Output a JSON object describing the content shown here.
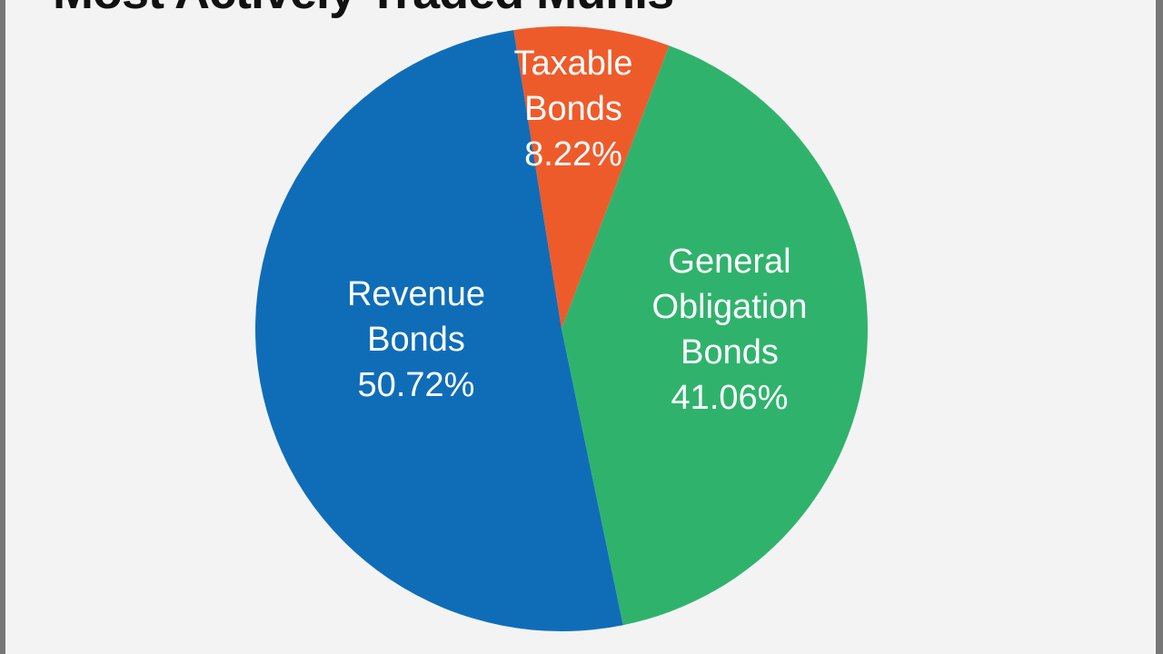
{
  "chart_data": {
    "type": "pie",
    "title": "Most Actively Traded Munis",
    "slices": [
      {
        "label_lines": [
          "Taxable",
          "Bonds",
          "8.22%"
        ],
        "value": 8.22,
        "color": "#ee5b2b"
      },
      {
        "label_lines": [
          "General",
          "Obligation",
          "Bonds",
          "41.06%"
        ],
        "value": 41.06,
        "color": "#2fb36c"
      },
      {
        "label_lines": [
          "Revenue",
          "Bonds",
          "50.72%"
        ],
        "value": 50.72,
        "color": "#0f6db8"
      }
    ],
    "legend": "none",
    "footnote": ""
  }
}
